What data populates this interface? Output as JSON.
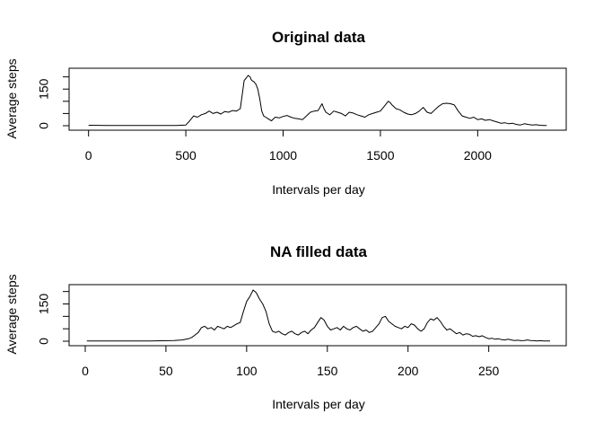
{
  "chart_data": [
    {
      "type": "line",
      "title": "Original data",
      "xlabel": "Intervals per day",
      "ylabel": "Average steps",
      "xlim": [
        -100,
        2455
      ],
      "ylim": [
        0,
        206
      ],
      "xticks": [
        0,
        500,
        1000,
        1500,
        2000
      ],
      "yticks": [
        0,
        50,
        100,
        150,
        200
      ],
      "ytick_labels": [
        "0",
        "",
        "",
        "150",
        ""
      ],
      "grid": false,
      "series": [
        {
          "x": [
            0,
            100,
            200,
            300,
            400,
            450,
            500,
            520,
            540,
            560,
            580,
            600,
            620,
            640,
            660,
            680,
            700,
            720,
            740,
            760,
            780,
            800,
            810,
            820,
            830,
            835,
            840,
            850,
            860,
            870,
            880,
            890,
            900,
            910,
            920,
            930,
            940,
            950,
            960,
            980,
            1000,
            1020,
            1040,
            1060,
            1080,
            1100,
            1120,
            1140,
            1160,
            1180,
            1200,
            1210,
            1220,
            1240,
            1260,
            1280,
            1300,
            1320,
            1340,
            1360,
            1380,
            1400,
            1420,
            1440,
            1460,
            1480,
            1500,
            1520,
            1540,
            1550,
            1560,
            1580,
            1600,
            1620,
            1640,
            1660,
            1680,
            1700,
            1720,
            1740,
            1760,
            1780,
            1800,
            1820,
            1840,
            1860,
            1880,
            1900,
            1920,
            1940,
            1960,
            1980,
            2000,
            2020,
            2040,
            2060,
            2080,
            2100,
            2120,
            2140,
            2160,
            2180,
            2200,
            2220,
            2240,
            2260,
            2280,
            2300,
            2320,
            2340,
            2355
          ],
          "y": [
            2,
            1,
            1,
            1,
            1,
            1,
            3,
            20,
            40,
            35,
            45,
            50,
            60,
            50,
            55,
            48,
            58,
            55,
            62,
            60,
            70,
            185,
            195,
            206,
            200,
            190,
            185,
            180,
            170,
            150,
            110,
            60,
            40,
            35,
            30,
            25,
            20,
            28,
            35,
            32,
            38,
            42,
            35,
            30,
            28,
            25,
            40,
            55,
            60,
            62,
            90,
            70,
            55,
            45,
            60,
            55,
            50,
            40,
            55,
            52,
            45,
            40,
            35,
            45,
            50,
            55,
            60,
            80,
            100,
            95,
            85,
            70,
            65,
            55,
            48,
            45,
            50,
            60,
            75,
            55,
            50,
            65,
            80,
            90,
            92,
            90,
            85,
            60,
            40,
            35,
            30,
            35,
            25,
            28,
            22,
            25,
            20,
            15,
            10,
            12,
            8,
            10,
            5,
            3,
            8,
            5,
            3,
            4,
            2,
            1,
            1
          ]
        }
      ]
    },
    {
      "type": "line",
      "title": "NA filled data",
      "xlabel": "Intervals per day",
      "ylabel": "Average steps",
      "xlim": [
        -10,
        298
      ],
      "ylim": [
        0,
        206
      ],
      "xticks": [
        0,
        50,
        100,
        150,
        200,
        250
      ],
      "yticks": [
        0,
        50,
        100,
        150,
        200
      ],
      "ytick_labels": [
        "0",
        "",
        "",
        "150",
        ""
      ],
      "grid": false,
      "series": [
        {
          "x": [
            1,
            20,
            40,
            55,
            60,
            64,
            66,
            68,
            70,
            72,
            74,
            76,
            78,
            80,
            82,
            84,
            86,
            88,
            90,
            92,
            94,
            96,
            98,
            100,
            102,
            104,
            106,
            108,
            110,
            112,
            114,
            116,
            118,
            120,
            122,
            124,
            126,
            128,
            130,
            132,
            134,
            136,
            138,
            140,
            142,
            144,
            146,
            148,
            150,
            152,
            154,
            156,
            158,
            160,
            162,
            164,
            166,
            168,
            170,
            172,
            174,
            176,
            178,
            180,
            182,
            184,
            186,
            188,
            190,
            192,
            194,
            196,
            198,
            200,
            202,
            204,
            206,
            208,
            210,
            212,
            214,
            216,
            218,
            220,
            222,
            224,
            226,
            228,
            230,
            232,
            234,
            236,
            238,
            240,
            242,
            244,
            246,
            248,
            250,
            252,
            254,
            256,
            258,
            260,
            262,
            264,
            266,
            268,
            270,
            272,
            274,
            276,
            278,
            280,
            282,
            284,
            286,
            288
          ],
          "y": [
            1,
            1,
            1,
            3,
            5,
            10,
            15,
            25,
            35,
            55,
            60,
            50,
            55,
            45,
            60,
            55,
            50,
            60,
            55,
            62,
            70,
            75,
            120,
            160,
            180,
            206,
            195,
            170,
            150,
            120,
            70,
            40,
            35,
            40,
            30,
            25,
            35,
            40,
            30,
            25,
            35,
            40,
            30,
            45,
            55,
            75,
            95,
            85,
            60,
            45,
            50,
            55,
            45,
            60,
            50,
            45,
            55,
            60,
            50,
            40,
            45,
            35,
            40,
            55,
            70,
            95,
            100,
            80,
            70,
            60,
            55,
            50,
            60,
            55,
            70,
            65,
            50,
            40,
            50,
            75,
            90,
            85,
            95,
            80,
            60,
            45,
            50,
            40,
            30,
            35,
            25,
            30,
            28,
            20,
            22,
            18,
            22,
            15,
            10,
            12,
            8,
            10,
            6,
            5,
            8,
            5,
            3,
            4,
            2,
            3,
            5,
            3,
            2,
            1,
            2,
            1,
            1,
            1
          ]
        }
      ]
    }
  ]
}
